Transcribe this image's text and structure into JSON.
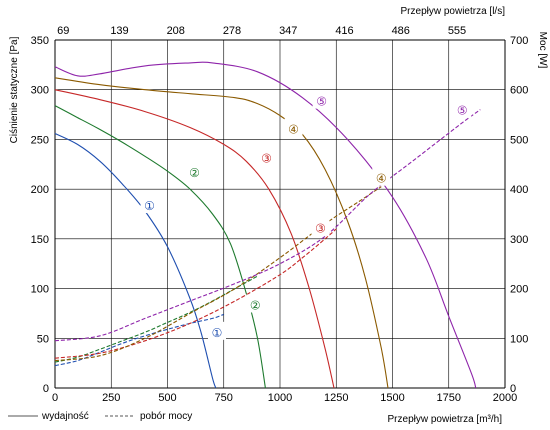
{
  "chart_data": {
    "type": "line",
    "xlabel_bottom": "Przepływ powietrza [m³/h]",
    "xlabel_top": "Przepływ powietrza [l/s]",
    "ylabel_left": "Ciśnienie statyczne [Pa]",
    "ylabel_right": "Moc [W]",
    "xlim": [
      0,
      2000
    ],
    "ylim_left": [
      0,
      350
    ],
    "ylim_right": [
      0,
      700
    ],
    "xticks_bottom": [
      0,
      250,
      500,
      750,
      1000,
      1250,
      1500,
      1750,
      2000
    ],
    "xticks_top": [
      {
        "label": "69",
        "m3h": 250
      },
      {
        "label": "139",
        "m3h": 500
      },
      {
        "label": "208",
        "m3h": 750
      },
      {
        "label": "278",
        "m3h": 1000
      },
      {
        "label": "347",
        "m3h": 1250
      },
      {
        "label": "416",
        "m3h": 1500
      },
      {
        "label": "486",
        "m3h": 1750
      },
      {
        "label": "555",
        "m3h": 2000
      }
    ],
    "yticks_left": [
      0,
      50,
      100,
      150,
      200,
      250,
      300,
      350
    ],
    "yticks_right": [
      0,
      100,
      200,
      300,
      400,
      500,
      600,
      700
    ],
    "grid": true,
    "legend": {
      "position": "bottom-left",
      "solid_label": "wydajność",
      "dashed_label": "pobór mocy"
    },
    "series": [
      {
        "name": "1",
        "color": "#1f4fb0",
        "pressure": [
          [
            0,
            256
          ],
          [
            100,
            245
          ],
          [
            200,
            228
          ],
          [
            300,
            205
          ],
          [
            400,
            178
          ],
          [
            500,
            142
          ],
          [
            600,
            90
          ],
          [
            650,
            55
          ],
          [
            700,
            10
          ],
          [
            715,
            0
          ]
        ],
        "power": [
          [
            0,
            45
          ],
          [
            100,
            55
          ],
          [
            200,
            72
          ],
          [
            300,
            90
          ],
          [
            400,
            105
          ],
          [
            500,
            118
          ],
          [
            600,
            130
          ],
          [
            700,
            140
          ],
          [
            750,
            148
          ]
        ],
        "pressure_marker": {
          "label": "①",
          "x": 420,
          "y": 185
        },
        "power_marker": {
          "label": "①",
          "x": 720,
          "y": 115
        }
      },
      {
        "name": "2",
        "color": "#1e7a2e",
        "pressure": [
          [
            0,
            284
          ],
          [
            100,
            272
          ],
          [
            200,
            260
          ],
          [
            300,
            247
          ],
          [
            400,
            233
          ],
          [
            500,
            218
          ],
          [
            600,
            200
          ],
          [
            700,
            175
          ],
          [
            780,
            145
          ],
          [
            850,
            95
          ],
          [
            900,
            50
          ],
          [
            935,
            0
          ]
        ],
        "power": [
          [
            0,
            52
          ],
          [
            100,
            62
          ],
          [
            200,
            78
          ],
          [
            300,
            95
          ],
          [
            400,
            112
          ],
          [
            500,
            132
          ],
          [
            600,
            152
          ],
          [
            700,
            175
          ],
          [
            800,
            200
          ],
          [
            900,
            225
          ]
        ],
        "pressure_marker": {
          "label": "②",
          "x": 620,
          "y": 218
        },
        "power_marker": {
          "label": "②",
          "x": 890,
          "y": 170
        }
      },
      {
        "name": "3",
        "color": "#c62828",
        "pressure": [
          [
            0,
            300
          ],
          [
            200,
            290
          ],
          [
            400,
            278
          ],
          [
            600,
            262
          ],
          [
            750,
            245
          ],
          [
            850,
            228
          ],
          [
            950,
            200
          ],
          [
            1050,
            155
          ],
          [
            1130,
            100
          ],
          [
            1200,
            40
          ],
          [
            1240,
            0
          ]
        ],
        "power": [
          [
            0,
            60
          ],
          [
            200,
            70
          ],
          [
            400,
            95
          ],
          [
            600,
            130
          ],
          [
            800,
            175
          ],
          [
            1000,
            228
          ],
          [
            1100,
            262
          ],
          [
            1200,
            300
          ],
          [
            1250,
            320
          ]
        ],
        "pressure_marker": {
          "label": "③",
          "x": 940,
          "y": 233
        },
        "power_marker": {
          "label": "③",
          "x": 1180,
          "y": 325
        }
      },
      {
        "name": "4",
        "color": "#8b5a00",
        "pressure": [
          [
            0,
            312
          ],
          [
            200,
            305
          ],
          [
            400,
            300
          ],
          [
            600,
            296
          ],
          [
            800,
            292
          ],
          [
            900,
            286
          ],
          [
            1000,
            274
          ],
          [
            1100,
            255
          ],
          [
            1200,
            220
          ],
          [
            1300,
            168
          ],
          [
            1380,
            110
          ],
          [
            1450,
            40
          ],
          [
            1480,
            0
          ]
        ],
        "power": [
          [
            0,
            55
          ],
          [
            200,
            65
          ],
          [
            400,
            100
          ],
          [
            600,
            150
          ],
          [
            800,
            200
          ],
          [
            1000,
            262
          ],
          [
            1200,
            330
          ],
          [
            1350,
            375
          ],
          [
            1450,
            405
          ]
        ],
        "pressure_marker": {
          "label": "④",
          "x": 1060,
          "y": 262
        },
        "power_marker": {
          "label": "④",
          "x": 1450,
          "y": 425
        }
      },
      {
        "name": "5",
        "color": "#8e24aa",
        "pressure": [
          [
            0,
            323
          ],
          [
            100,
            314
          ],
          [
            200,
            316
          ],
          [
            400,
            324
          ],
          [
            600,
            327
          ],
          [
            700,
            327
          ],
          [
            900,
            318
          ],
          [
            1100,
            292
          ],
          [
            1300,
            250
          ],
          [
            1500,
            192
          ],
          [
            1650,
            130
          ],
          [
            1750,
            72
          ],
          [
            1850,
            15
          ],
          [
            1870,
            0
          ]
        ],
        "power": [
          [
            0,
            95
          ],
          [
            200,
            105
          ],
          [
            400,
            140
          ],
          [
            600,
            175
          ],
          [
            800,
            210
          ],
          [
            1000,
            250
          ],
          [
            1200,
            305
          ],
          [
            1400,
            390
          ],
          [
            1600,
            460
          ],
          [
            1800,
            530
          ],
          [
            1890,
            560
          ]
        ],
        "pressure_marker": {
          "label": "⑤",
          "x": 1185,
          "y": 290
        },
        "power_marker": {
          "label": "⑤",
          "x": 1810,
          "y": 562
        }
      }
    ]
  }
}
